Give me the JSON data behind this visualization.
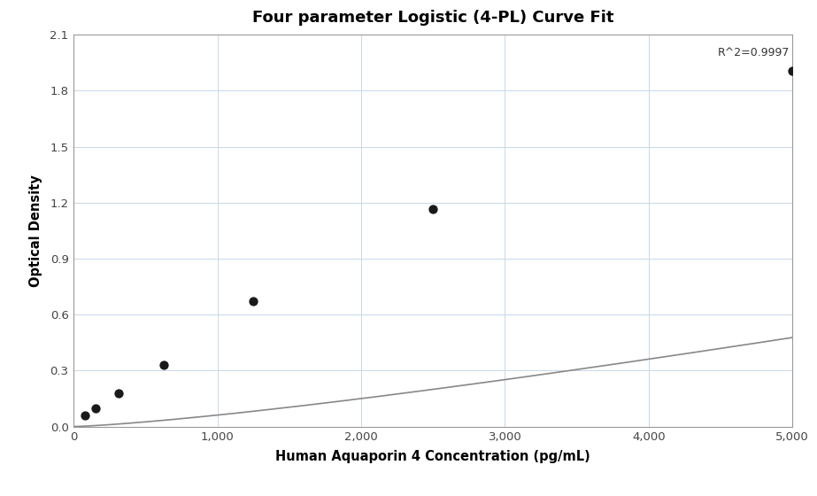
{
  "title": "Four parameter Logistic (4-PL) Curve Fit",
  "xlabel": "Human Aquaporin 4 Concentration (pg/mL)",
  "ylabel": "Optical Density",
  "r_squared": "R^2=0.9997",
  "x_data": [
    78.1,
    156.25,
    312.5,
    625,
    1250,
    2500,
    5000
  ],
  "y_data": [
    0.062,
    0.1,
    0.178,
    0.33,
    0.67,
    1.165,
    1.905
  ],
  "xlim": [
    0,
    5000
  ],
  "ylim": [
    0,
    2.1
  ],
  "yticks": [
    0,
    0.3,
    0.6,
    0.9,
    1.2,
    1.5,
    1.8,
    2.1
  ],
  "xticks": [
    0,
    1000,
    2000,
    3000,
    4000,
    5000
  ],
  "curve_color": "#888888",
  "dot_color": "#1a1a1a",
  "dot_size": 55,
  "background_color": "#ffffff",
  "grid_color": "#c8d8e8",
  "title_fontsize": 13,
  "label_fontsize": 10.5,
  "annotation_fontsize": 9,
  "spine_color": "#999999"
}
